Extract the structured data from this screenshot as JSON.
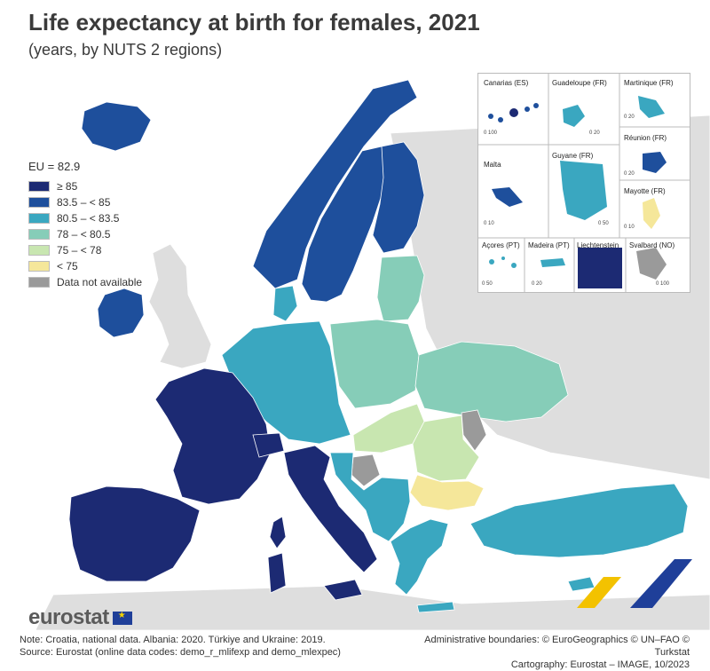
{
  "title": "Life expectancy at birth for females, 2021",
  "subtitle": "(years, by NUTS 2 regions)",
  "legend": {
    "title": "EU = 82.9",
    "items": [
      {
        "label": "≥ 85",
        "color": "#1c2a73"
      },
      {
        "label": "83.5 – < 85",
        "color": "#1e4f9c"
      },
      {
        "label": "80.5 – < 83.5",
        "color": "#3aa7c0"
      },
      {
        "label": "78 – < 80.5",
        "color": "#86cdb8"
      },
      {
        "label": "75 – < 78",
        "color": "#c8e6b0"
      },
      {
        "label": "< 75",
        "color": "#f5e79a"
      },
      {
        "label": "Data not available",
        "color": "#9a9a9a"
      }
    ]
  },
  "insets": {
    "canarias": {
      "label": "Canarias (ES)",
      "scale": "0  100"
    },
    "guadeloupe": {
      "label": "Guadeloupe (FR)",
      "scale": "0  20"
    },
    "martinique": {
      "label": "Martinique (FR)",
      "scale": "0  20"
    },
    "reunion": {
      "label": "Réunion (FR)",
      "scale": "0  20"
    },
    "malta": {
      "label": "Malta",
      "scale": "0  10"
    },
    "guyane": {
      "label": "Guyane (FR)",
      "scale": "0  50"
    },
    "mayotte": {
      "label": "Mayotte (FR)",
      "scale": "0  10"
    },
    "acores": {
      "label": "Açores (PT)",
      "scale": "0  50"
    },
    "madeira": {
      "label": "Madeira (PT)",
      "scale": "0  20"
    },
    "liechtenstein": {
      "label": "Liechtenstein"
    },
    "svalbard": {
      "label": "Svalbard (NO)",
      "scale": "0 100"
    }
  },
  "logo": "eurostat",
  "notes": {
    "left_line1": "Note: Croatia, national data. Albania: 2020. Türkiye and Ukraine: 2019.",
    "left_line2": "Source: Eurostat (online data codes: demo_r_mlifexp and demo_mlexpec)",
    "right_line1": "Administrative boundaries: © EuroGeographics © UN–FAO © Turkstat",
    "right_line2": "Cartography: Eurostat – IMAGE, 10/2023"
  },
  "colors": {
    "ge85": "#1c2a73",
    "c83_85": "#1e4f9c",
    "c80_83": "#3aa7c0",
    "c78_80": "#86cdb8",
    "c75_78": "#c8e6b0",
    "lt75": "#f5e79a",
    "na": "#9a9a9a",
    "non_eu_land": "#dedede",
    "sea": "#ffffff"
  },
  "regions": [
    {
      "name": "iceland",
      "class": "c83_85"
    },
    {
      "name": "norway",
      "class": "c83_85"
    },
    {
      "name": "sweden",
      "class": "c83_85"
    },
    {
      "name": "finland",
      "class": "c83_85"
    },
    {
      "name": "ireland",
      "class": "c83_85"
    },
    {
      "name": "uk",
      "class": "non_eu_land"
    },
    {
      "name": "denmark",
      "class": "c80_83"
    },
    {
      "name": "baltics",
      "class": "c78_80"
    },
    {
      "name": "benelux-germany-austria",
      "class": "c80_83"
    },
    {
      "name": "poland-czechia",
      "class": "c78_80"
    },
    {
      "name": "france",
      "class": "ge85"
    },
    {
      "name": "switzerland",
      "class": "ge85"
    },
    {
      "name": "iberia",
      "class": "ge85"
    },
    {
      "name": "italy",
      "class": "ge85"
    },
    {
      "name": "hungary-slovakia",
      "class": "c75_78"
    },
    {
      "name": "romania",
      "class": "c75_78"
    },
    {
      "name": "bulgaria",
      "class": "lt75"
    },
    {
      "name": "ukraine",
      "class": "c78_80"
    },
    {
      "name": "moldova",
      "class": "na"
    },
    {
      "name": "bosnia",
      "class": "na"
    },
    {
      "name": "balkans",
      "class": "c80_83"
    },
    {
      "name": "greece",
      "class": "c80_83"
    },
    {
      "name": "turkiye",
      "class": "c80_83"
    },
    {
      "name": "cyprus",
      "class": "c80_83"
    },
    {
      "name": "russia-belarus",
      "class": "non_eu_land"
    }
  ]
}
